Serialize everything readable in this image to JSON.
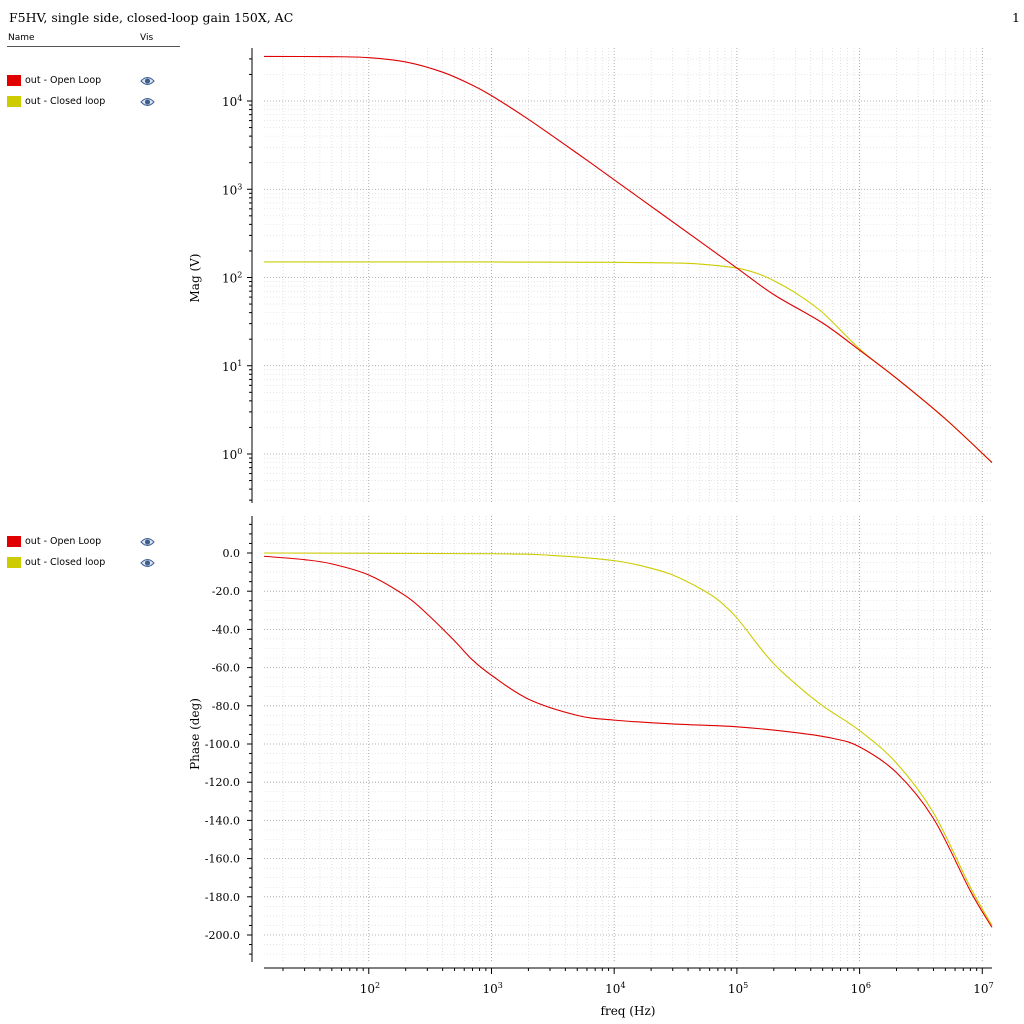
{
  "window": {
    "title": "F5HV, single side, closed-loop gain 150X, AC",
    "page_number": "1"
  },
  "legend": {
    "header_name": "Name",
    "header_vis": "Vis",
    "panels": [
      {
        "items": [
          {
            "label": "out - Open Loop",
            "color": "#e00000",
            "icon": "eye-icon"
          },
          {
            "label": "out - Closed loop",
            "color": "#cccc00",
            "icon": "eye-icon"
          }
        ]
      },
      {
        "items": [
          {
            "label": "out - Open Loop",
            "color": "#e00000",
            "icon": "eye-icon"
          },
          {
            "label": "out - Closed loop",
            "color": "#cccc00",
            "icon": "eye-icon"
          }
        ]
      }
    ]
  },
  "chart_data": [
    {
      "type": "line",
      "ylabel": "Mag (V)",
      "xscale": "log",
      "yscale": "log",
      "xlim": [
        14,
        12000000
      ],
      "ylim": [
        0.27,
        40000
      ],
      "yticks": [
        {
          "base": "10",
          "exp": "4"
        },
        {
          "base": "10",
          "exp": "3"
        },
        {
          "base": "10",
          "exp": "2"
        },
        {
          "base": "10",
          "exp": "1"
        },
        {
          "base": "10",
          "exp": "0"
        }
      ],
      "grid": true,
      "series": [
        {
          "name": "out - Open Loop",
          "color": "#e00000",
          "x": [
            14,
            50,
            100,
            200,
            400,
            700,
            1000,
            2000,
            5000,
            10000,
            50000,
            100000,
            200000,
            500000,
            1000000,
            2000000,
            5000000,
            12000000
          ],
          "values": [
            32000,
            31800,
            31000,
            27700,
            21200,
            15100,
            11500,
            6200,
            2550,
            1280,
            256,
            128,
            64,
            30.5,
            15,
            7.2,
            2.5,
            0.8
          ]
        },
        {
          "name": "out - Closed loop",
          "color": "#cccc00",
          "x": [
            14,
            1000,
            10000,
            30000,
            50000,
            100000,
            150000,
            200000,
            300000,
            500000,
            1000000,
            2000000,
            5000000,
            12000000
          ],
          "values": [
            150,
            150,
            148.5,
            146,
            142,
            128,
            110,
            92,
            67,
            40,
            15.5,
            7.2,
            2.5,
            0.8
          ]
        }
      ]
    },
    {
      "type": "line",
      "ylabel": "Phase (deg)",
      "xlabel": "freq (Hz)",
      "xscale": "log",
      "ylim": [
        -215,
        20
      ],
      "yticks": [
        "0.0",
        "-20.0",
        "-40.0",
        "-60.0",
        "-80.0",
        "-100.0",
        "-120.0",
        "-140.0",
        "-160.0",
        "-180.0",
        "-200.0"
      ],
      "xticks": [
        {
          "base": "10",
          "exp": "2"
        },
        {
          "base": "10",
          "exp": "3"
        },
        {
          "base": "10",
          "exp": "4"
        },
        {
          "base": "10",
          "exp": "5"
        },
        {
          "base": "10",
          "exp": "6"
        },
        {
          "base": "10",
          "exp": "7"
        }
      ],
      "grid": true,
      "series": [
        {
          "name": "out - Open Loop",
          "color": "#e00000",
          "x": [
            14,
            30,
            50,
            100,
            200,
            300,
            500,
            700,
            1000,
            2000,
            5000,
            10000,
            30000,
            100000,
            300000,
            600000,
            1000000,
            2000000,
            4000000,
            8000000,
            12000000
          ],
          "values": [
            -1.7,
            -3.5,
            -5.7,
            -11.5,
            -22.5,
            -32,
            -46,
            -56,
            -64,
            -76.5,
            -85,
            -87.5,
            -89.5,
            -91,
            -94,
            -97,
            -101.5,
            -115,
            -139,
            -177,
            -196
          ]
        },
        {
          "name": "out - Closed loop",
          "color": "#cccc00",
          "x": [
            14,
            1000,
            3000,
            10000,
            20000,
            30000,
            50000,
            70000,
            100000,
            150000,
            200000,
            300000,
            500000,
            1000000,
            2000000,
            4000000,
            8000000,
            12000000
          ],
          "values": [
            0,
            -0.4,
            -1.2,
            -4,
            -8,
            -11.5,
            -18.5,
            -24.5,
            -34,
            -48.5,
            -58,
            -68.5,
            -80,
            -93,
            -110,
            -136,
            -175,
            -195
          ]
        }
      ]
    }
  ]
}
